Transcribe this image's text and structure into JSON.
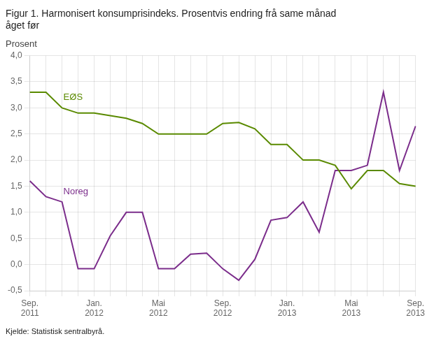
{
  "chart_data": {
    "type": "line",
    "title": "Figur 1. Harmonisert konsumprisindeks. Prosentvis endring frå same månad\någet før",
    "y_label": "Prosent",
    "source": "Kjelde: Statistisk sentralbyrå.",
    "categories": [
      "Sep.\n2011",
      null,
      null,
      null,
      "Jan.\n2012",
      null,
      null,
      null,
      "Mai\n2012",
      null,
      null,
      null,
      "Sep.\n2012",
      null,
      null,
      null,
      "Jan.\n2013",
      null,
      null,
      null,
      "Mai\n2013",
      null,
      null,
      null,
      "Sep.\n2013"
    ],
    "series": [
      {
        "name": "EØS",
        "color": "#5a8a00",
        "values": [
          3.3,
          3.3,
          3.0,
          2.9,
          2.9,
          2.85,
          2.8,
          2.7,
          2.5,
          2.5,
          2.5,
          2.5,
          2.7,
          2.72,
          2.6,
          2.3,
          2.3,
          2.0,
          2.0,
          1.9,
          1.45,
          1.8,
          1.8,
          1.55,
          1.5
        ]
      },
      {
        "name": "Noreg",
        "color": "#7b2d8b",
        "values": [
          1.6,
          1.3,
          1.2,
          -0.08,
          -0.08,
          0.55,
          1.0,
          1.0,
          -0.08,
          -0.08,
          0.2,
          0.22,
          -0.08,
          -0.3,
          0.1,
          0.85,
          0.9,
          1.2,
          0.62,
          1.8,
          1.8,
          1.9,
          3.3,
          1.8,
          2.65
        ]
      }
    ],
    "ylim": [
      -0.5,
      4.0
    ],
    "yticks": [
      {
        "value": -0.5,
        "label": "-0,5"
      },
      {
        "value": 0.0,
        "label": "0,0"
      },
      {
        "value": 0.5,
        "label": "0,5"
      },
      {
        "value": 1.0,
        "label": "1,0"
      },
      {
        "value": 1.5,
        "label": "1,5"
      },
      {
        "value": 2.0,
        "label": "2,0"
      },
      {
        "value": 2.5,
        "label": "2,5"
      },
      {
        "value": 3.0,
        "label": "3,0"
      },
      {
        "value": 3.5,
        "label": "3,5"
      },
      {
        "value": 4.0,
        "label": "4,0"
      }
    ],
    "grid": true
  }
}
